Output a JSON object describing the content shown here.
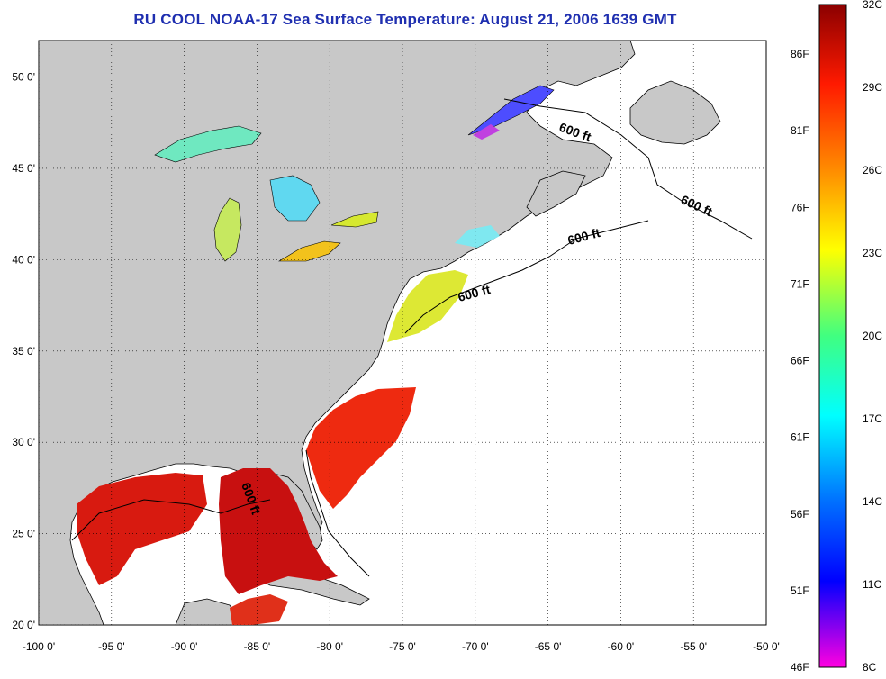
{
  "title": "RU COOL  NOAA-17  Sea Surface Temperature:  August 21, 2006 1639 GMT",
  "map": {
    "lon_range": [
      -100,
      -50
    ],
    "lat_range": [
      20,
      52
    ],
    "lon_ticks": [
      "-100 0'",
      "-95 0'",
      "-90 0'",
      "-85 0'",
      "-80 0'",
      "-75 0'",
      "-70 0'",
      "-65 0'",
      "-60 0'",
      "-55 0'",
      "-50 0'"
    ],
    "lat_ticks": [
      "50 0'",
      "45 0'",
      "40 0'",
      "35 0'",
      "30 0'",
      "25 0'",
      "20 0'"
    ],
    "gridlines": "dotted",
    "land_color": "#c8c8c8",
    "ocean_color": "#ffffff",
    "contour_labels": [
      "600 ft",
      "600 ft",
      "600 ft",
      "600 ft",
      "600 ft"
    ]
  },
  "colorbar": {
    "celsius_labels": [
      "32C",
      "29C",
      "26C",
      "23C",
      "20C",
      "17C",
      "14C",
      "11C",
      "8C"
    ],
    "fahrenheit_labels": [
      "86F",
      "81F",
      "76F",
      "71F",
      "66F",
      "61F",
      "56F",
      "51F",
      "46F"
    ],
    "colors": [
      "#a00000",
      "#ff1a00",
      "#ff8000",
      "#ffff00",
      "#7fff40",
      "#00ffff",
      "#0080ff",
      "#0000ff",
      "#ff00ff"
    ]
  }
}
